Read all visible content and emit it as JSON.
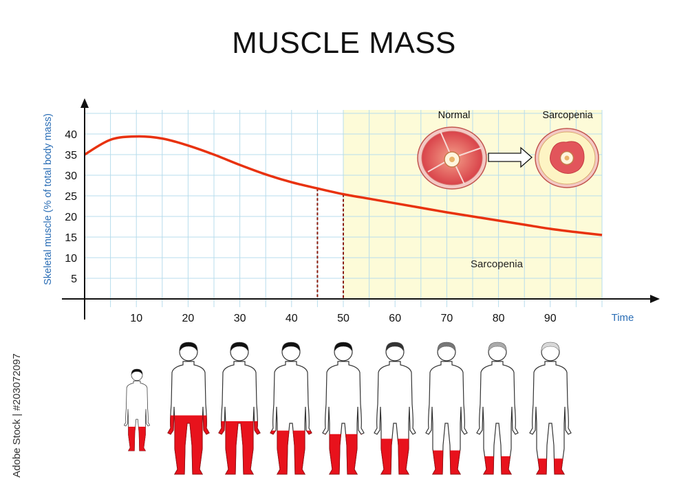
{
  "chart_data": {
    "type": "line",
    "title": "MUSCLE MASS",
    "xlabel": "Time",
    "ylabel": "Skeletal muscle (% of total body mass)",
    "xlim": [
      0,
      100
    ],
    "ylim": [
      0,
      45
    ],
    "x_ticks": [
      10,
      20,
      30,
      40,
      50,
      60,
      70,
      80,
      90
    ],
    "y_ticks": [
      5,
      10,
      15,
      20,
      25,
      30,
      35,
      40
    ],
    "grid": true,
    "series": [
      {
        "x": [
          0,
          5,
          10,
          15,
          20,
          25,
          30,
          35,
          40,
          45,
          50,
          55,
          60,
          65,
          70,
          75,
          80,
          85,
          90,
          95,
          100
        ],
        "y": [
          35,
          38.6,
          39.4,
          38.9,
          37.2,
          35,
          32.5,
          30.2,
          28.3,
          26.8,
          25.4,
          24.3,
          23.2,
          22.1,
          21,
          20,
          19,
          18,
          17,
          16.2,
          15.5
        ],
        "color": "#e8320f"
      }
    ],
    "markers": [
      {
        "x": 45,
        "color": "#8b1a0a"
      },
      {
        "x": 50,
        "color": "#8b1a0a"
      }
    ],
    "shaded_region": {
      "x_start": 50,
      "x_end": 100,
      "label": "Sarcopenia",
      "color": "#fdfbd8"
    }
  },
  "inset": {
    "normal_label": "Normal",
    "sarcopenia_label": "Sarcopenia"
  },
  "figures": [
    {
      "age": 5,
      "muscle_fraction": 0.38,
      "hair": "#111111"
    },
    {
      "age": 20,
      "muscle_fraction": 0.55,
      "hair": "#111111"
    },
    {
      "age": 30,
      "muscle_fraction": 0.5,
      "hair": "#111111"
    },
    {
      "age": 40,
      "muscle_fraction": 0.42,
      "hair": "#111111"
    },
    {
      "age": 50,
      "muscle_fraction": 0.39,
      "hair": "#111111"
    },
    {
      "age": 60,
      "muscle_fraction": 0.35,
      "hair": "#333333"
    },
    {
      "age": 70,
      "muscle_fraction": 0.25,
      "hair": "#777777"
    },
    {
      "age": 80,
      "muscle_fraction": 0.2,
      "hair": "#aaaaaa"
    },
    {
      "age": 90,
      "muscle_fraction": 0.18,
      "hair": "#d8d8d8"
    }
  ],
  "watermark": "Adobe Stock | #203072097"
}
